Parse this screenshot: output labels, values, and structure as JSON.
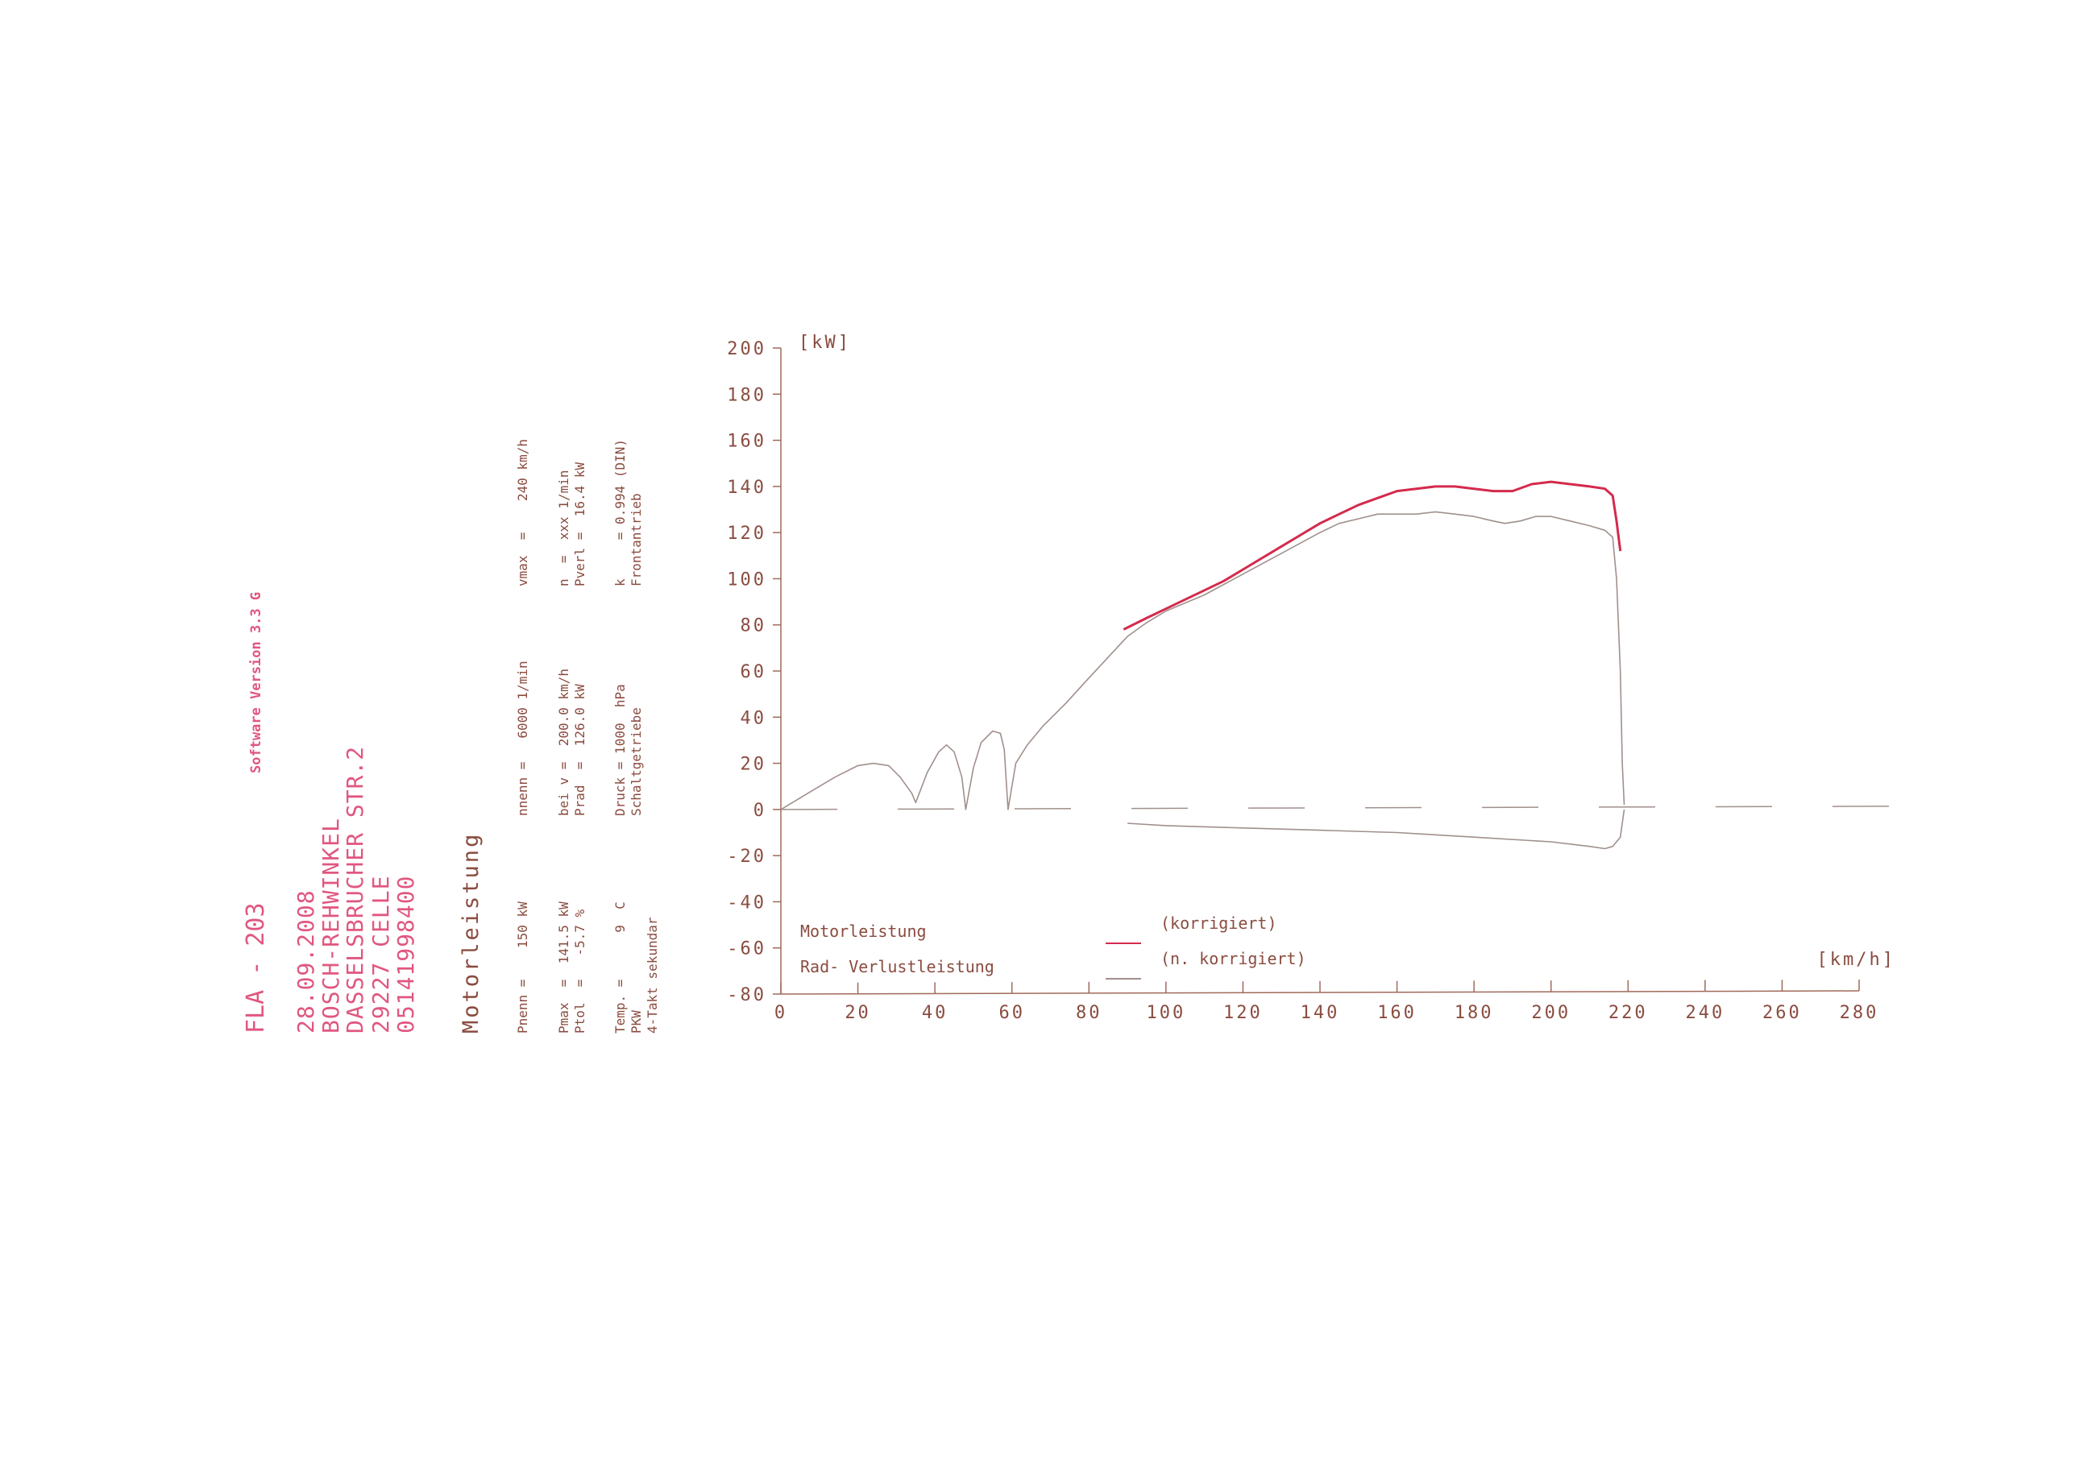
{
  "header": {
    "station": "FLA - 203",
    "software_version": "Software Version 3.3 G",
    "date": "28.09.2008",
    "company": "BOSCH-REHWINKEL",
    "street": "DASSELSBRUCHER STR.2",
    "city": "29227 CELLE",
    "phone": "05141998400",
    "report_title": "Motorleistung"
  },
  "params": {
    "col1": [
      "Pnenn =    150 kW",
      "Pmax  =  141.5 kW",
      "Ptol  =   -5.7 %",
      "Temp. =      9  C",
      "PKW",
      "4-Takt sekundar"
    ],
    "col2": [
      "nnenn =   6000 1/min",
      "bei v =  200.0 km/h",
      "Prad  =  126.0 kW",
      "Druck = 1000  hPa",
      "Schaltgetriebe"
    ],
    "col3": [
      "vmax  =    240 km/h",
      "n  =  xxx 1/min",
      "Pverl =  16.4 kW",
      "k     = 0.994 (DIN)",
      "Frontantrieb"
    ]
  },
  "colors": {
    "motor": "#d42a4c",
    "wheel": "#a0908c",
    "axis": "#a06a5c",
    "text_pink": "#e0577f",
    "text_brown": "#8a4c40"
  },
  "chart_data": {
    "type": "line",
    "xlabel": "[km/h]",
    "ylabel": "[kW]",
    "xlim": [
      0,
      280
    ],
    "ylim": [
      -80,
      200
    ],
    "xticks": [
      "0",
      "20",
      "40",
      "60",
      "80",
      "100",
      "120",
      "140",
      "160",
      "180",
      "200",
      "220",
      "240",
      "260",
      "280"
    ],
    "yticks": [
      "200",
      "180",
      "160",
      "140",
      "120",
      "100",
      "80",
      "60",
      "40",
      "20",
      "0",
      "-20",
      "-40",
      "-60",
      "-80"
    ],
    "grid": false,
    "zero_line": "dashed",
    "legend": [
      {
        "label": "Motorleistung",
        "note": "(korrigiert)",
        "series": "motor"
      },
      {
        "label": "Rad- Verlustleistung",
        "note": "(n. korrigiert)",
        "series": "wheel"
      }
    ],
    "series": [
      {
        "name": "Motorleistung",
        "key": "motor",
        "x": [
          89,
          95,
          100,
          105,
          110,
          115,
          120,
          125,
          130,
          135,
          140,
          145,
          150,
          155,
          160,
          165,
          170,
          175,
          180,
          185,
          190,
          195,
          200,
          205,
          210,
          214,
          216,
          217,
          218
        ],
        "y": [
          78,
          83,
          87,
          91,
          95,
          99,
          104,
          109,
          114,
          119,
          124,
          128,
          132,
          135,
          138,
          139,
          140,
          140,
          139,
          138,
          138,
          141,
          142,
          141,
          140,
          139,
          136,
          125,
          112
        ]
      },
      {
        "name": "Rad-",
        "key": "wheel",
        "x": [
          0,
          3,
          8,
          14,
          20,
          24,
          28,
          31,
          34,
          35,
          38,
          41,
          43,
          45,
          47,
          48,
          50,
          52,
          55,
          57,
          58,
          59,
          61,
          64,
          68,
          74,
          80,
          85,
          90,
          95,
          100,
          110,
          120,
          130,
          140,
          145,
          150,
          155,
          160,
          165,
          170,
          175,
          180,
          185,
          188,
          192,
          196,
          200,
          205,
          210,
          214,
          216,
          217,
          218,
          218.5,
          219
        ],
        "y": [
          0,
          3,
          8,
          14,
          19,
          20,
          19,
          14,
          7,
          3,
          16,
          25,
          28,
          25,
          14,
          0,
          18,
          29,
          34,
          33,
          26,
          0,
          20,
          28,
          36,
          46,
          57,
          66,
          75,
          81,
          86,
          93,
          102,
          111,
          120,
          124,
          126,
          128,
          128,
          128,
          129,
          128,
          127,
          125,
          124,
          125,
          127,
          127,
          125,
          123,
          121,
          118,
          100,
          60,
          20,
          2
        ]
      },
      {
        "name": "Verlustleistung",
        "key": "loss",
        "x": [
          90,
          100,
          120,
          140,
          160,
          180,
          200,
          210,
          214,
          216,
          218,
          219
        ],
        "y": [
          -6,
          -7,
          -8,
          -9,
          -10,
          -12,
          -14,
          -16,
          -17,
          -16,
          -12,
          0
        ]
      }
    ]
  }
}
